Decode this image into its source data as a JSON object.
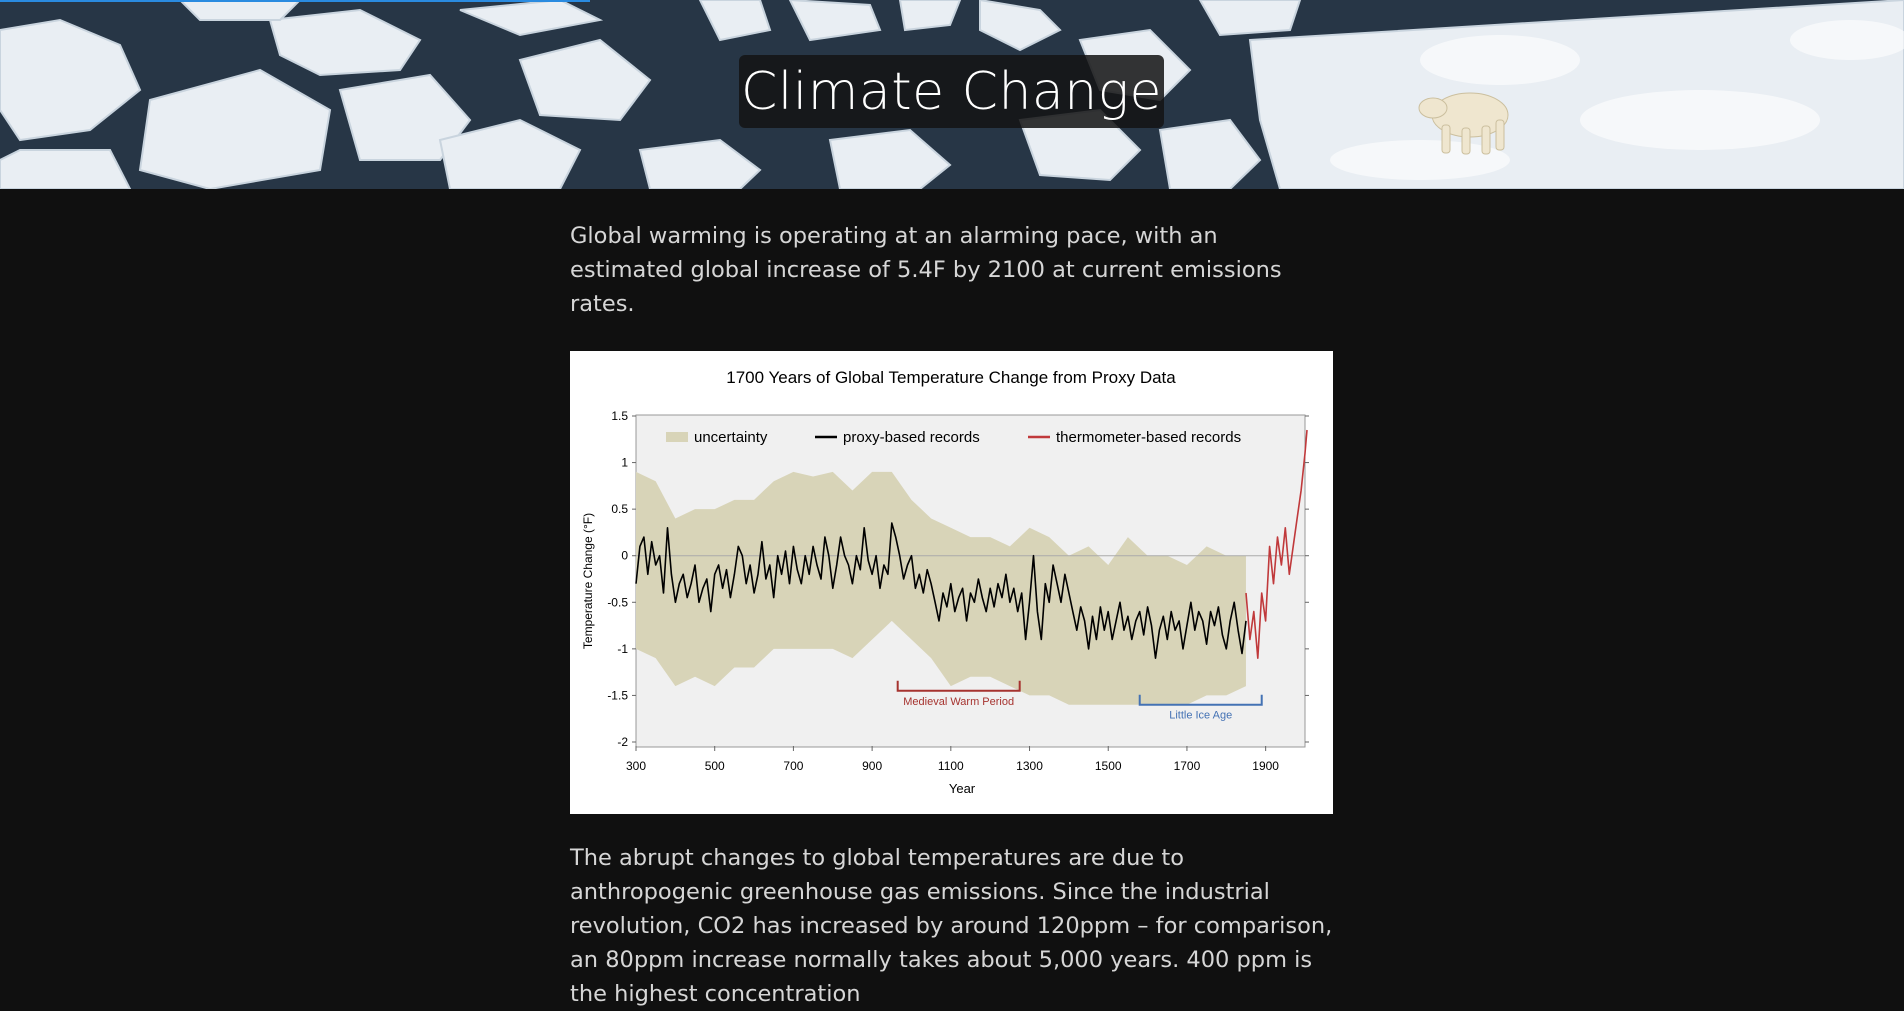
{
  "hero": {
    "title": "Climate Change"
  },
  "reading_progress": 0.31,
  "intro_text": "Global warming is operating at an alarming pace, with an estimated global increase of 5.4F by 2100 at current emissions rates.",
  "body_text": "The abrupt changes to global temperatures are due to anthropogenic greenhouse gas emissions. Since the industrial revolution, CO2 has increased by around 120ppm – for comparison, an 80ppm increase normally takes about 5,000 years. 400 ppm is the highest concentration",
  "chart_data": {
    "type": "line",
    "title": "1700 Years of Global Temperature Change from Proxy Data",
    "xlabel": "Year",
    "ylabel": "Temperature Change (°F)",
    "xlim": [
      300,
      2000
    ],
    "ylim": [
      -2,
      1.5
    ],
    "x_ticks": [
      300,
      500,
      700,
      900,
      1100,
      1300,
      1500,
      1700,
      1900
    ],
    "y_ticks": [
      1.5,
      1,
      0.5,
      0,
      -0.5,
      -1,
      -1.5,
      -2
    ],
    "x_tick_labels": [
      "300",
      "500",
      "700",
      "900",
      "1100",
      "1300",
      "1500",
      "1700",
      "1900"
    ],
    "y_tick_labels": [
      "1.5",
      "1",
      "0.5",
      "0",
      "-0.5",
      "-1",
      "-1.5",
      "-2"
    ],
    "legend_placement": "top",
    "legend": [
      {
        "name": "uncertainty",
        "color": "#d8d4b8"
      },
      {
        "name": "proxy-based records",
        "color": "#000000"
      },
      {
        "name": "thermometer-based records",
        "color": "#c0393b"
      }
    ],
    "series": [
      {
        "name": "proxy-based records",
        "color": "#000000",
        "x": [
          300,
          310,
          320,
          330,
          340,
          350,
          360,
          370,
          380,
          390,
          400,
          410,
          420,
          430,
          440,
          450,
          460,
          470,
          480,
          490,
          500,
          510,
          520,
          530,
          540,
          550,
          560,
          570,
          580,
          590,
          600,
          610,
          620,
          630,
          640,
          650,
          660,
          670,
          680,
          690,
          700,
          710,
          720,
          730,
          740,
          750,
          760,
          770,
          780,
          790,
          800,
          810,
          820,
          830,
          840,
          850,
          860,
          870,
          880,
          890,
          900,
          910,
          920,
          930,
          940,
          950,
          960,
          970,
          980,
          990,
          1000,
          1010,
          1020,
          1030,
          1040,
          1050,
          1060,
          1070,
          1080,
          1090,
          1100,
          1110,
          1120,
          1130,
          1140,
          1150,
          1160,
          1170,
          1180,
          1190,
          1200,
          1210,
          1220,
          1230,
          1240,
          1250,
          1260,
          1270,
          1280,
          1290,
          1300,
          1310,
          1320,
          1330,
          1340,
          1350,
          1360,
          1370,
          1380,
          1390,
          1400,
          1410,
          1420,
          1430,
          1440,
          1450,
          1460,
          1470,
          1480,
          1490,
          1500,
          1510,
          1520,
          1530,
          1540,
          1550,
          1560,
          1570,
          1580,
          1590,
          1600,
          1610,
          1620,
          1630,
          1640,
          1650,
          1660,
          1670,
          1680,
          1690,
          1700,
          1710,
          1720,
          1730,
          1740,
          1750,
          1760,
          1770,
          1780,
          1790,
          1800,
          1810,
          1820,
          1830,
          1840,
          1850
        ],
        "values": [
          -0.3,
          0.1,
          0.2,
          -0.2,
          0.15,
          -0.1,
          0.0,
          -0.4,
          0.3,
          -0.2,
          -0.5,
          -0.3,
          -0.2,
          -0.45,
          -0.3,
          -0.1,
          -0.5,
          -0.35,
          -0.25,
          -0.6,
          -0.2,
          -0.1,
          -0.35,
          -0.15,
          -0.45,
          -0.2,
          0.1,
          0.0,
          -0.3,
          -0.1,
          -0.4,
          -0.2,
          0.15,
          -0.25,
          -0.1,
          -0.45,
          0.0,
          -0.2,
          0.05,
          -0.3,
          0.1,
          -0.15,
          -0.3,
          0.0,
          -0.2,
          0.1,
          -0.1,
          -0.25,
          0.2,
          0.0,
          -0.35,
          -0.1,
          0.2,
          0.0,
          -0.1,
          -0.3,
          0.0,
          -0.15,
          0.3,
          -0.05,
          -0.2,
          0.0,
          -0.35,
          -0.1,
          -0.2,
          0.35,
          0.2,
          0.0,
          -0.25,
          -0.1,
          0.0,
          -0.35,
          -0.2,
          -0.4,
          -0.15,
          -0.3,
          -0.5,
          -0.7,
          -0.4,
          -0.55,
          -0.3,
          -0.6,
          -0.45,
          -0.35,
          -0.7,
          -0.4,
          -0.5,
          -0.25,
          -0.45,
          -0.6,
          -0.35,
          -0.55,
          -0.3,
          -0.45,
          -0.2,
          -0.5,
          -0.35,
          -0.6,
          -0.4,
          -0.9,
          -0.5,
          0.0,
          -0.6,
          -0.9,
          -0.3,
          -0.5,
          -0.1,
          -0.3,
          -0.5,
          -0.2,
          -0.4,
          -0.6,
          -0.8,
          -0.55,
          -0.7,
          -1.0,
          -0.65,
          -0.9,
          -0.55,
          -0.8,
          -0.6,
          -0.9,
          -0.7,
          -0.5,
          -0.8,
          -0.65,
          -0.9,
          -0.7,
          -0.6,
          -0.85,
          -0.55,
          -0.75,
          -1.1,
          -0.8,
          -0.65,
          -0.9,
          -0.6,
          -0.8,
          -0.7,
          -1.0,
          -0.75,
          -0.5,
          -0.8,
          -0.6,
          -0.7,
          -0.95,
          -0.6,
          -0.75,
          -0.55,
          -0.85,
          -1.0,
          -0.7,
          -0.5,
          -0.8,
          -1.05,
          -0.7
        ]
      },
      {
        "name": "thermometer-based records",
        "color": "#c0393b",
        "x": [
          1850,
          1860,
          1870,
          1880,
          1890,
          1900,
          1910,
          1920,
          1930,
          1940,
          1950,
          1960,
          1970,
          1980,
          1990,
          2000,
          2005
        ],
        "values": [
          -0.4,
          -0.9,
          -0.6,
          -1.1,
          -0.4,
          -0.7,
          0.1,
          -0.3,
          0.2,
          -0.1,
          0.3,
          -0.2,
          0.1,
          0.4,
          0.7,
          1.1,
          1.35
        ]
      },
      {
        "name": "uncertainty",
        "color": "#d8d4b8",
        "x": [
          300,
          350,
          400,
          450,
          500,
          550,
          600,
          650,
          700,
          750,
          800,
          850,
          900,
          950,
          1000,
          1050,
          1100,
          1150,
          1200,
          1250,
          1300,
          1350,
          1400,
          1450,
          1500,
          1550,
          1600,
          1650,
          1700,
          1750,
          1800,
          1850
        ],
        "upper": [
          0.9,
          0.8,
          0.4,
          0.5,
          0.5,
          0.6,
          0.6,
          0.8,
          0.9,
          0.85,
          0.9,
          0.7,
          0.9,
          0.9,
          0.6,
          0.4,
          0.3,
          0.2,
          0.2,
          0.1,
          0.3,
          0.2,
          0.0,
          0.1,
          -0.1,
          0.2,
          0.0,
          0.0,
          -0.1,
          0.1,
          0.0,
          0.0
        ],
        "lower": [
          -1.0,
          -1.1,
          -1.4,
          -1.3,
          -1.4,
          -1.2,
          -1.2,
          -1.0,
          -1.0,
          -1.0,
          -1.0,
          -1.1,
          -0.9,
          -0.7,
          -0.9,
          -1.1,
          -1.4,
          -1.3,
          -1.3,
          -1.4,
          -1.5,
          -1.5,
          -1.6,
          -1.6,
          -1.6,
          -1.6,
          -1.6,
          -1.6,
          -1.6,
          -1.5,
          -1.5,
          -1.4
        ]
      }
    ],
    "annotations": [
      {
        "label": "Medieval Warm Period",
        "x_start": 965,
        "x_end": 1275,
        "y": -1.45,
        "color": "#a6332f"
      },
      {
        "label": "Little Ice Age",
        "x_start": 1580,
        "x_end": 1890,
        "y": -1.6,
        "color": "#4472b4"
      }
    ],
    "zero_line": true
  }
}
